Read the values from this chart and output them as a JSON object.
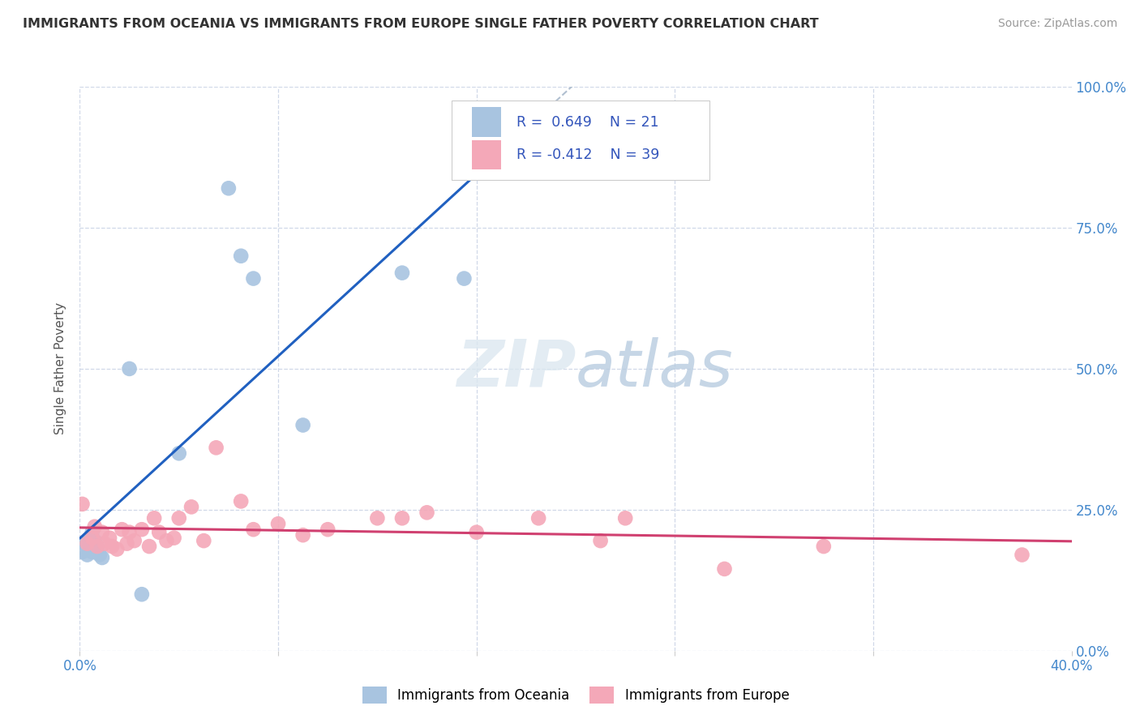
{
  "title": "IMMIGRANTS FROM OCEANIA VS IMMIGRANTS FROM EUROPE SINGLE FATHER POVERTY CORRELATION CHART",
  "source": "Source: ZipAtlas.com",
  "ylabel": "Single Father Poverty",
  "legend_label_1": "Immigrants from Oceania",
  "legend_label_2": "Immigrants from Europe",
  "R1": 0.649,
  "N1": 21,
  "R2": -0.412,
  "N2": 39,
  "xlim": [
    0.0,
    0.4
  ],
  "ylim": [
    0.0,
    1.0
  ],
  "xtick_positions": [
    0.0,
    0.08,
    0.16,
    0.24,
    0.32,
    0.4
  ],
  "ytick_positions": [
    0.0,
    0.25,
    0.5,
    0.75,
    1.0
  ],
  "color_oceania": "#a8c4e0",
  "color_europe": "#f4a8b8",
  "color_line_oceania": "#2060c0",
  "color_line_europe": "#d04070",
  "color_grid": "#d0d8e8",
  "watermark_color": "#c8d8e8",
  "oceania_x": [
    0.001,
    0.002,
    0.003,
    0.003,
    0.004,
    0.004,
    0.005,
    0.005,
    0.006,
    0.007,
    0.008,
    0.009,
    0.02,
    0.025,
    0.04,
    0.06,
    0.065,
    0.07,
    0.09,
    0.13,
    0.155
  ],
  "oceania_y": [
    0.175,
    0.19,
    0.17,
    0.185,
    0.2,
    0.18,
    0.175,
    0.21,
    0.195,
    0.185,
    0.17,
    0.165,
    0.5,
    0.1,
    0.35,
    0.82,
    0.7,
    0.66,
    0.4,
    0.67,
    0.66
  ],
  "europe_x": [
    0.001,
    0.003,
    0.005,
    0.006,
    0.007,
    0.009,
    0.01,
    0.012,
    0.013,
    0.015,
    0.017,
    0.019,
    0.02,
    0.022,
    0.025,
    0.028,
    0.03,
    0.032,
    0.035,
    0.038,
    0.04,
    0.045,
    0.05,
    0.055,
    0.065,
    0.07,
    0.08,
    0.09,
    0.1,
    0.12,
    0.13,
    0.14,
    0.16,
    0.185,
    0.21,
    0.22,
    0.26,
    0.3,
    0.38
  ],
  "europe_y": [
    0.26,
    0.19,
    0.2,
    0.22,
    0.185,
    0.21,
    0.19,
    0.2,
    0.185,
    0.18,
    0.215,
    0.19,
    0.21,
    0.195,
    0.215,
    0.185,
    0.235,
    0.21,
    0.195,
    0.2,
    0.235,
    0.255,
    0.195,
    0.36,
    0.265,
    0.215,
    0.225,
    0.205,
    0.215,
    0.235,
    0.235,
    0.245,
    0.21,
    0.235,
    0.195,
    0.235,
    0.145,
    0.185,
    0.17
  ]
}
